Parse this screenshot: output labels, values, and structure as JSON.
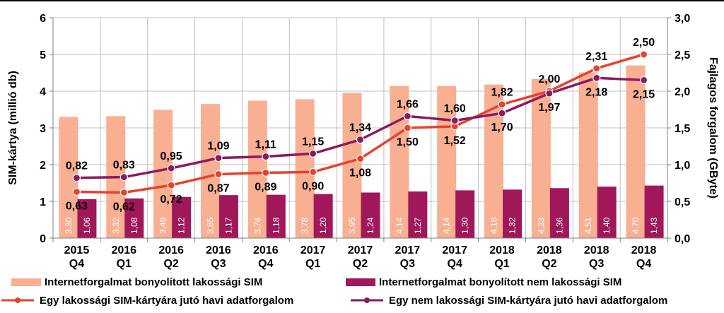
{
  "chart_data": {
    "type": "bar",
    "categories": [
      [
        "2015",
        "Q4"
      ],
      [
        "2016",
        "Q1"
      ],
      [
        "2016",
        "Q2"
      ],
      [
        "2016",
        "Q3"
      ],
      [
        "2016",
        "Q4"
      ],
      [
        "2017",
        "Q1"
      ],
      [
        "2017",
        "Q2"
      ],
      [
        "2017",
        "Q3"
      ],
      [
        "2017",
        "Q4"
      ],
      [
        "2018",
        "Q1"
      ],
      [
        "2018",
        "Q2"
      ],
      [
        "2018",
        "Q3"
      ],
      [
        "2018",
        "Q4"
      ]
    ],
    "ylabel": "SIM-kártya (millió db)",
    "y2label": "Fajlagos forgalom (GByte)",
    "ylim": [
      0,
      6
    ],
    "y2lim": [
      0,
      3
    ],
    "yticks": [
      "0",
      "1",
      "2",
      "3",
      "4",
      "5",
      "6"
    ],
    "y2ticks": [
      "0,0",
      "0,5",
      "1,0",
      "1,5",
      "2,0",
      "2,5",
      "3,0"
    ],
    "grid": true,
    "legend_position": "bottom",
    "series": [
      {
        "name": "Internetforgalmat bonyolított lakossági SIM",
        "type": "bar",
        "axis": "left",
        "color": "#F9AF91",
        "values": [
          3.3,
          3.32,
          3.49,
          3.65,
          3.74,
          3.78,
          3.95,
          4.14,
          4.14,
          4.18,
          4.33,
          4.51,
          4.7
        ],
        "labels": [
          "3,30",
          "3,32",
          "3,49",
          "3,65",
          "3,74",
          "3,78",
          "3,95",
          "4,14",
          "4,14",
          "4,18",
          "4,33",
          "4,51",
          "4,70"
        ]
      },
      {
        "name": "Internetforgalmat bonyolított nem lakossági SIM",
        "type": "bar",
        "axis": "left",
        "color": "#A0175A",
        "values": [
          1.06,
          1.08,
          1.12,
          1.17,
          1.18,
          1.2,
          1.24,
          1.27,
          1.3,
          1.32,
          1.36,
          1.4,
          1.43
        ],
        "labels": [
          "1,06",
          "1,08",
          "1,12",
          "1,17",
          "1,18",
          "1,20",
          "1,24",
          "1,27",
          "1,30",
          "1,32",
          "1,36",
          "1,40",
          "1,43"
        ]
      },
      {
        "name": "Egy lakossági SIM-kártyára jutó havi adatforgalom",
        "type": "line",
        "axis": "right",
        "color": "#E8412C",
        "values": [
          0.63,
          0.62,
          0.72,
          0.87,
          0.89,
          0.9,
          1.08,
          1.5,
          1.52,
          1.82,
          2.0,
          2.31,
          2.5
        ],
        "labels": [
          "0,63",
          "0,62",
          "0,72",
          "0,87",
          "0,89",
          "0,90",
          "1,08",
          "1,50",
          "1,52",
          "1,82",
          "2,00",
          "2,31",
          "2,50"
        ],
        "label_pos": [
          "below",
          "below",
          "below",
          "below",
          "below",
          "below",
          "below",
          "below",
          "below",
          "above",
          "above",
          "above",
          "above"
        ]
      },
      {
        "name": "Egy nem lakossági SIM-kártyára jutó havi adatforgalom",
        "type": "line",
        "axis": "right",
        "color": "#8B1A5E",
        "values": [
          0.82,
          0.83,
          0.95,
          1.09,
          1.11,
          1.15,
          1.34,
          1.66,
          1.6,
          1.7,
          1.97,
          2.18,
          2.15
        ],
        "labels": [
          "0,82",
          "0,83",
          "0,95",
          "1,09",
          "1,11",
          "1,15",
          "1,34",
          "1,66",
          "1,60",
          "1,70",
          "1,97",
          "2,18",
          "2,15"
        ],
        "label_pos": [
          "above",
          "above",
          "above",
          "above",
          "above",
          "above",
          "above",
          "above",
          "above",
          "below",
          "below",
          "below",
          "below"
        ]
      }
    ]
  }
}
